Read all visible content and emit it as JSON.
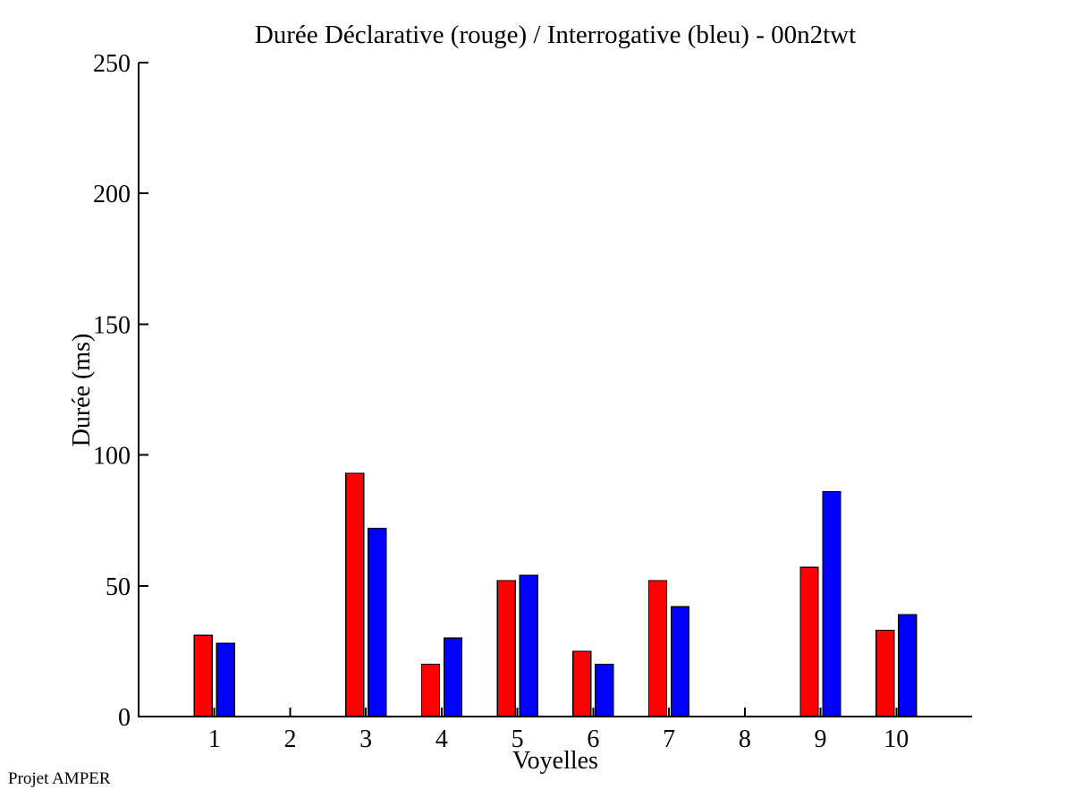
{
  "chart_data": {
    "type": "bar",
    "title": "Durée Déclarative (rouge) / Interrogative (bleu) - 00n2twt",
    "xlabel": "Voyelles",
    "ylabel": "Durée (ms)",
    "categories": [
      "1",
      "2",
      "3",
      "4",
      "5",
      "6",
      "7",
      "8",
      "9",
      "10"
    ],
    "series": [
      {
        "name": "Déclarative (rouge)",
        "color": "#ff0000",
        "values": [
          31,
          0,
          93,
          20,
          52,
          25,
          52,
          0,
          57,
          33
        ]
      },
      {
        "name": "Interrogative (bleu)",
        "color": "#0000ff",
        "values": [
          28,
          0,
          72,
          30,
          54,
          20,
          42,
          0,
          86,
          39
        ]
      }
    ],
    "ylim": [
      0,
      250
    ],
    "yticks": [
      0,
      50,
      100,
      150,
      200,
      250
    ],
    "grid": false,
    "legend_position": "none",
    "axis_color": "#000000",
    "background_color": "#ffffff"
  },
  "footer": {
    "label": "Projet AMPER"
  }
}
